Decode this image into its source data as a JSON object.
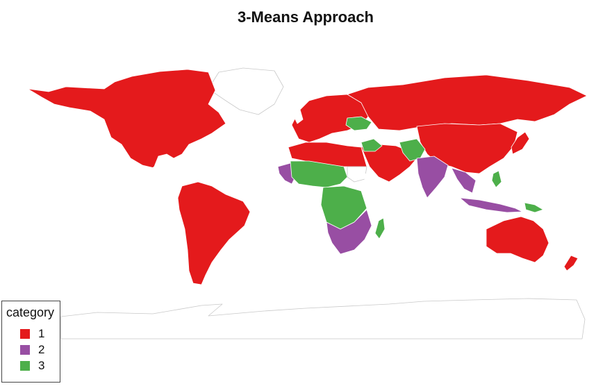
{
  "chart_data": {
    "type": "choropleth",
    "title": "3-Means Approach",
    "legend": {
      "title": "category",
      "placement": "bottom-left",
      "entries": [
        {
          "label": "1",
          "color": "#e41a1c"
        },
        {
          "label": "2",
          "color": "#984ea3"
        },
        {
          "label": "3",
          "color": "#4daf4a"
        }
      ]
    },
    "regions": [
      {
        "name": "North America",
        "category": "1"
      },
      {
        "name": "South America",
        "category": "1"
      },
      {
        "name": "Europe",
        "category": "1"
      },
      {
        "name": "Russia",
        "category": "1"
      },
      {
        "name": "China",
        "category": "1"
      },
      {
        "name": "Middle East",
        "category": "1"
      },
      {
        "name": "North Africa",
        "category": "1"
      },
      {
        "name": "Australia",
        "category": "1"
      },
      {
        "name": "Japan",
        "category": "1"
      },
      {
        "name": "New Zealand",
        "category": "1"
      },
      {
        "name": "India",
        "category": "2"
      },
      {
        "name": "Southern Africa",
        "category": "2"
      },
      {
        "name": "West Africa coast",
        "category": "2"
      },
      {
        "name": "Indonesia",
        "category": "2"
      },
      {
        "name": "Southeast Asia",
        "category": "2"
      },
      {
        "name": "Central Africa",
        "category": "3"
      },
      {
        "name": "Sahel",
        "category": "3"
      },
      {
        "name": "Madagascar",
        "category": "3"
      },
      {
        "name": "Central Asia",
        "category": "3"
      },
      {
        "name": "Turkey-Caucasus",
        "category": "3"
      },
      {
        "name": "Philippines",
        "category": "3"
      },
      {
        "name": "Papua New Guinea",
        "category": "3"
      },
      {
        "name": "Greenland",
        "category": null
      },
      {
        "name": "Antarctica",
        "category": null
      },
      {
        "name": "Sudan",
        "category": null
      }
    ]
  }
}
